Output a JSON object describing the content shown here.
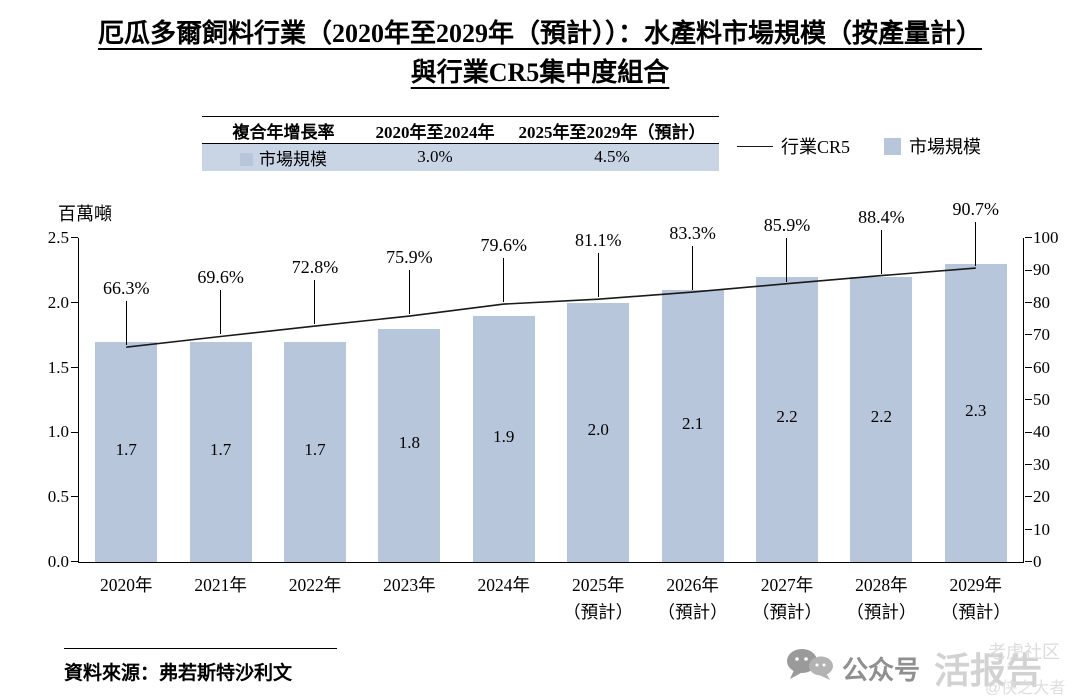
{
  "title": {
    "line1": "厄瓜多爾飼料行業（2020年至2029年（預計））：水產料市場規模（按產量計）",
    "line2": "與行業CR5集中度組合"
  },
  "growth_table": {
    "header": [
      "複合年增長率",
      "2020年至2024年",
      "2025年至2029年（預計）"
    ],
    "row_label": "市場規模",
    "row_values": [
      "3.0%",
      "4.5%"
    ]
  },
  "legend": {
    "cr5_label": "行業CR5",
    "market_label": "市場規模"
  },
  "axes": {
    "left_unit": "百萬噸",
    "left_ticks": [
      "0.0",
      "0.5",
      "1.0",
      "1.5",
      "2.0",
      "2.5"
    ],
    "right_ticks": [
      "0",
      "10",
      "20",
      "30",
      "40",
      "50",
      "60",
      "70",
      "80",
      "90",
      "100"
    ]
  },
  "chart_data": {
    "type": "bar+line",
    "title": "厄瓜多爾飼料行業（2020年至2029年（預計））：水產料市場規模（按產量計）與行業CR5集中度組合",
    "categories": [
      {
        "label": "2020年",
        "sublabel": ""
      },
      {
        "label": "2021年",
        "sublabel": ""
      },
      {
        "label": "2022年",
        "sublabel": ""
      },
      {
        "label": "2023年",
        "sublabel": ""
      },
      {
        "label": "2024年",
        "sublabel": ""
      },
      {
        "label": "2025年",
        "sublabel": "（預計）"
      },
      {
        "label": "2026年",
        "sublabel": "（預計）"
      },
      {
        "label": "2027年",
        "sublabel": "（預計）"
      },
      {
        "label": "2028年",
        "sublabel": "（預計）"
      },
      {
        "label": "2029年",
        "sublabel": "（預計）"
      }
    ],
    "series": [
      {
        "name": "市場規模",
        "type": "bar",
        "axis": "left",
        "unit": "百萬噸",
        "values": [
          1.7,
          1.7,
          1.7,
          1.8,
          1.9,
          2.0,
          2.1,
          2.2,
          2.2,
          2.3
        ]
      },
      {
        "name": "行業CR5",
        "type": "line",
        "axis": "right",
        "unit": "%",
        "values": [
          66.3,
          69.6,
          72.8,
          75.9,
          79.6,
          81.1,
          83.3,
          85.9,
          88.4,
          90.7
        ]
      }
    ],
    "left_ylabel": "百萬噸",
    "left_ylim": [
      0,
      2.5
    ],
    "right_ylim": [
      0,
      100
    ],
    "cagr": {
      "2020年至2024年": "3.0%",
      "2025年至2029年（預計）": "4.5%"
    },
    "legend_position": "top-right",
    "grid": false
  },
  "source": "資料來源：弗若斯特沙利文",
  "watermark": {
    "account_label": "公众号",
    "account_name": "活报告",
    "community": "老虎社区",
    "handle": "@侠之大者"
  },
  "colors": {
    "bar": "#b7c6db",
    "line": "#1a1a1a",
    "table_row_bg": "#c9d5e5"
  }
}
